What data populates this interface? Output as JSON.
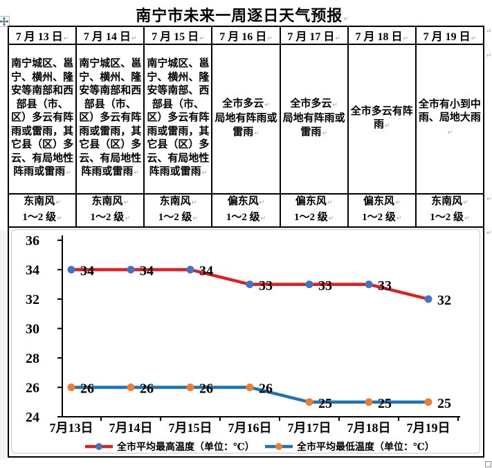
{
  "title": "南宁市未来一周逐日天气预报",
  "table": {
    "dates": [
      "7 月 13 日",
      "7 月 14 日",
      "7 月 15 日",
      "7 月 16 日",
      "7 月 17 日",
      "7 月 18 日",
      "7 月 19 日"
    ],
    "weather": [
      [
        "南宁城区、邕宁、横州、隆安等南部和西部县（市、区）多云有阵雨或雷雨，其它县（区）多云、有局地性阵雨或雷雨"
      ],
      [
        "南宁城区、邕宁、横州、隆安等南部和西部县（市、区）多云有阵雨或雷雨，其它县（区）多云、有局地性阵雨或雷雨"
      ],
      [
        "南宁城区、邕宁、横州、隆安等南部、西部县（市、区）多云有阵雨或雷雨，其它县（区）多云、有局地性阵雨或雷雨"
      ],
      [
        "全市多云",
        "局地有阵雨或雷雨"
      ],
      [
        "全市多云",
        "局地有阵雨或雷雨"
      ],
      [
        "全市多云有阵雨"
      ],
      [
        "全市有小到中雨、局地大雨"
      ]
    ],
    "wind": [
      [
        "东南风",
        "1～2 级"
      ],
      [
        "东南风",
        "1～2 级"
      ],
      [
        "东南风",
        "1～2 级"
      ],
      [
        "偏东风",
        "1～2 级"
      ],
      [
        "偏东风",
        "1～2 级"
      ],
      [
        "偏东风",
        "1～2 级"
      ],
      [
        "东南风",
        "1～2 级"
      ]
    ]
  },
  "chart_data": {
    "type": "line",
    "categories": [
      "7月13日",
      "7月14日",
      "7月15日",
      "7月16日",
      "7月17日",
      "7月18日",
      "7月19日"
    ],
    "series": [
      {
        "name": "全市平均最高温度（单位：℃）",
        "values": [
          34,
          34,
          34,
          33,
          33,
          33,
          32
        ],
        "line_color": "#df1f1f",
        "marker_color": "#4472c4"
      },
      {
        "name": "全市平均最低温度（单位：℃）",
        "values": [
          26,
          26,
          26,
          26,
          25,
          25,
          25
        ],
        "line_color": "#1b74b9",
        "marker_color": "#ed7d31"
      }
    ],
    "ylim": [
      24,
      36
    ],
    "yticks": [
      24,
      26,
      28,
      30,
      32,
      34,
      36
    ],
    "grid": false,
    "data_labels": true,
    "legend_position": "bottom",
    "axis_color": "#000000",
    "label_color": "#000000"
  }
}
